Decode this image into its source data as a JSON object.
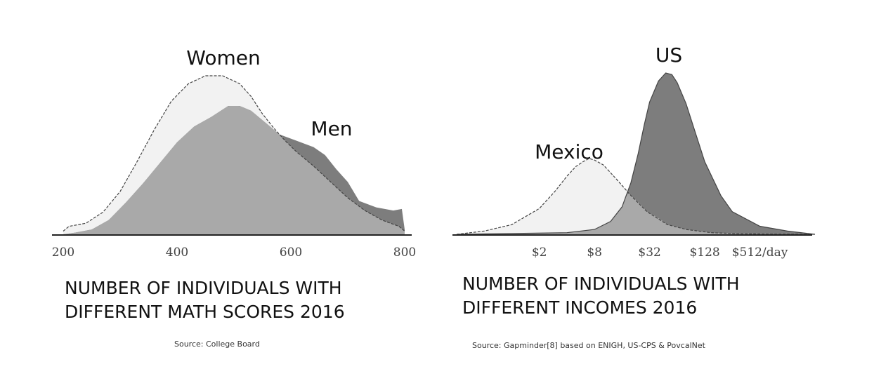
{
  "chart_data": [
    {
      "type": "area",
      "title_lines": [
        "NUMBER OF INDIVIDUALS WITH",
        "DIFFERENT MATH SCORES 2016"
      ],
      "source": "Source: College Board",
      "xlim": [
        200,
        800
      ],
      "x_ticks": [
        {
          "value": 200,
          "label": "200"
        },
        {
          "value": 400,
          "label": "400"
        },
        {
          "value": 600,
          "label": "600"
        },
        {
          "value": 800,
          "label": "800"
        }
      ],
      "ylim": [
        0,
        1
      ],
      "series": [
        {
          "name": "Women",
          "fill": "#f2f2f2",
          "stroke": "#444444",
          "dashed": true,
          "x": [
            200,
            210,
            240,
            270,
            300,
            330,
            360,
            390,
            420,
            450,
            480,
            510,
            530,
            550,
            570,
            590,
            610,
            640,
            670,
            700,
            730,
            760,
            790,
            800
          ],
          "y": [
            0.02,
            0.05,
            0.07,
            0.14,
            0.27,
            0.46,
            0.66,
            0.84,
            0.95,
            1.0,
            1.0,
            0.95,
            0.87,
            0.76,
            0.67,
            0.59,
            0.52,
            0.43,
            0.33,
            0.23,
            0.15,
            0.09,
            0.05,
            0.02
          ]
        },
        {
          "name": "Men",
          "fill": "#7d7d7d",
          "stroke": "none",
          "dashed": false,
          "x": [
            200,
            220,
            250,
            280,
            310,
            340,
            370,
            400,
            430,
            460,
            490,
            510,
            530,
            550,
            580,
            610,
            640,
            660,
            680,
            700,
            720,
            750,
            780,
            795,
            800
          ],
          "y": [
            0.0,
            0.01,
            0.03,
            0.09,
            0.2,
            0.32,
            0.45,
            0.58,
            0.68,
            0.74,
            0.81,
            0.81,
            0.78,
            0.72,
            0.63,
            0.59,
            0.55,
            0.5,
            0.41,
            0.33,
            0.21,
            0.17,
            0.15,
            0.16,
            0.03
          ]
        }
      ],
      "overlap_fill": "#a9a9a9"
    },
    {
      "type": "area",
      "title_lines": [
        "NUMBER OF INDIVIDUALS WITH",
        "DIFFERENT INCOMES 2016"
      ],
      "source": "Source: Gapminder[8] based on ENIGH, US-CPS & PovcalNet",
      "x_scale": "log2",
      "xlim": [
        0.25,
        2048
      ],
      "x_ticks": [
        {
          "value": 2,
          "label": "$2"
        },
        {
          "value": 8,
          "label": "$8"
        },
        {
          "value": 32,
          "label": "$32"
        },
        {
          "value": 128,
          "label": "$128"
        },
        {
          "value": 512,
          "label": "$512/day"
        }
      ],
      "ylim": [
        0,
        1
      ],
      "series": [
        {
          "name": "Mexico",
          "fill": "#f2f2f2",
          "stroke": "#444444",
          "dashed": true,
          "x": [
            0.25,
            0.5,
            1,
            2,
            3,
            4,
            5,
            6,
            7,
            8,
            10,
            14,
            20,
            30,
            50,
            80,
            150,
            300,
            700,
            2048
          ],
          "y": [
            0.0,
            0.02,
            0.06,
            0.16,
            0.27,
            0.36,
            0.42,
            0.45,
            0.47,
            0.46,
            0.43,
            0.34,
            0.24,
            0.14,
            0.06,
            0.03,
            0.01,
            0.004,
            0.001,
            0.0
          ]
        },
        {
          "name": "US",
          "fill": "#7d7d7d",
          "stroke": "#444444",
          "dashed": false,
          "x": [
            0.25,
            4,
            8,
            12,
            16,
            20,
            24,
            28,
            32,
            40,
            48,
            56,
            64,
            80,
            96,
            128,
            192,
            256,
            512,
            1024,
            2048
          ],
          "y": [
            0.0,
            0.01,
            0.03,
            0.08,
            0.17,
            0.32,
            0.5,
            0.68,
            0.82,
            0.95,
            1.0,
            0.99,
            0.94,
            0.81,
            0.67,
            0.45,
            0.24,
            0.14,
            0.05,
            0.02,
            0.0
          ]
        }
      ],
      "overlap_fill": "#a9a9a9"
    }
  ]
}
